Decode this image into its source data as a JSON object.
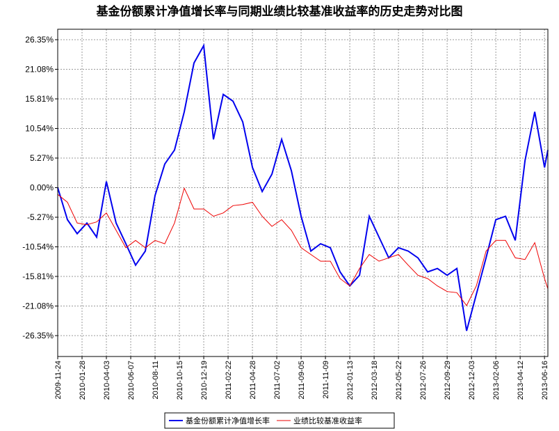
{
  "chart_data": {
    "type": "line",
    "title": "基金份额累计净值增长率与同期业绩比较基准收益率的历史走势对比图",
    "x": [
      "2009-11-24",
      "2009-12-20",
      "2010-01-15",
      "2010-02-10",
      "2010-03-08",
      "2010-04-03",
      "2010-04-29",
      "2010-05-25",
      "2010-06-20",
      "2010-07-16",
      "2010-08-11",
      "2010-09-06",
      "2010-10-02",
      "2010-10-28",
      "2010-11-23",
      "2010-12-19",
      "2011-01-14",
      "2011-02-09",
      "2011-03-07",
      "2011-04-02",
      "2011-04-28",
      "2011-05-24",
      "2011-06-19",
      "2011-07-15",
      "2011-08-10",
      "2011-09-05",
      "2011-10-01",
      "2011-10-27",
      "2011-11-22",
      "2011-12-18",
      "2012-01-13",
      "2012-02-08",
      "2012-03-05",
      "2012-03-31",
      "2012-04-26",
      "2012-05-22",
      "2012-06-17",
      "2012-07-13",
      "2012-08-08",
      "2012-09-03",
      "2012-09-29",
      "2012-10-25",
      "2012-11-20",
      "2012-12-16",
      "2013-01-11",
      "2013-02-06",
      "2013-03-04",
      "2013-03-30",
      "2013-04-25",
      "2013-05-21",
      "2013-06-16",
      "2013-06-25"
    ],
    "series": [
      {
        "name": "基金份额累计净值增长率",
        "color": "#0000ee",
        "values": [
          0,
          -5.7,
          -8.2,
          -6.3,
          -8.8,
          1.1,
          -6.3,
          -10.0,
          -13.8,
          -11.3,
          -1.4,
          4.2,
          6.7,
          13.5,
          22.2,
          25.3,
          8.6,
          16.6,
          15.4,
          11.7,
          3.6,
          -0.7,
          2.4,
          8.6,
          3.0,
          -5.1,
          -11.3,
          -10.0,
          -10.7,
          -15.0,
          -17.5,
          -15.6,
          -5.1,
          -8.8,
          -12.5,
          -10.7,
          -11.3,
          -12.5,
          -15.0,
          -14.4,
          -15.6,
          -14.4,
          -25.5,
          -19.0,
          -12.5,
          -5.7,
          -5.1,
          -9.4,
          4.8,
          13.5,
          3.6,
          6.7
        ]
      },
      {
        "name": "业绩比较基准收益率",
        "color": "#ee0000",
        "values": [
          -1.2,
          -2.6,
          -6.3,
          -6.6,
          -6.1,
          -4.5,
          -7.6,
          -10.7,
          -9.4,
          -10.7,
          -9.4,
          -10.0,
          -6.3,
          -0.1,
          -3.8,
          -3.8,
          -5.1,
          -4.5,
          -3.2,
          -3.0,
          -2.6,
          -5.1,
          -6.9,
          -5.7,
          -7.6,
          -10.7,
          -11.9,
          -13.1,
          -13.1,
          -16.2,
          -17.5,
          -14.4,
          -11.9,
          -13.1,
          -12.5,
          -11.9,
          -13.8,
          -15.6,
          -16.2,
          -17.5,
          -18.5,
          -18.7,
          -21.0,
          -17.5,
          -11.3,
          -9.4,
          -9.4,
          -12.5,
          -12.8,
          -9.8,
          -16.2,
          -18.0
        ]
      }
    ],
    "xlim": [
      "2009-11-24",
      "2013-06-25"
    ],
    "xticks": [
      "2009-11-24",
      "2010-01-28",
      "2010-04-03",
      "2010-06-07",
      "2010-08-11",
      "2010-10-15",
      "2010-12-19",
      "2011-02-22",
      "2011-04-28",
      "2011-07-02",
      "2011-09-05",
      "2011-11-09",
      "2012-01-13",
      "2012-03-18",
      "2012-05-22",
      "2012-07-26",
      "2012-09-29",
      "2012-12-03",
      "2013-02-06",
      "2013-04-12",
      "2013-06-16"
    ],
    "ylim": [
      -30.07,
      28.21
    ],
    "yticks": [
      {
        "value": 26.35,
        "label": "26.35%"
      },
      {
        "value": 21.08,
        "label": "21.08%"
      },
      {
        "value": 15.81,
        "label": "15.81%"
      },
      {
        "value": 10.54,
        "label": "10.54%"
      },
      {
        "value": 5.27,
        "label": "5.27%"
      },
      {
        "value": 0,
        "label": "0.00%"
      },
      {
        "value": -5.27,
        "label": "-5.27%"
      },
      {
        "value": -10.54,
        "label": "-10.54%"
      },
      {
        "value": -15.81,
        "label": "-15.81%"
      },
      {
        "value": -21.08,
        "label": "-21.08%"
      },
      {
        "value": -26.35,
        "label": "-26.35%"
      }
    ],
    "grid": true,
    "legend": "bottom"
  }
}
